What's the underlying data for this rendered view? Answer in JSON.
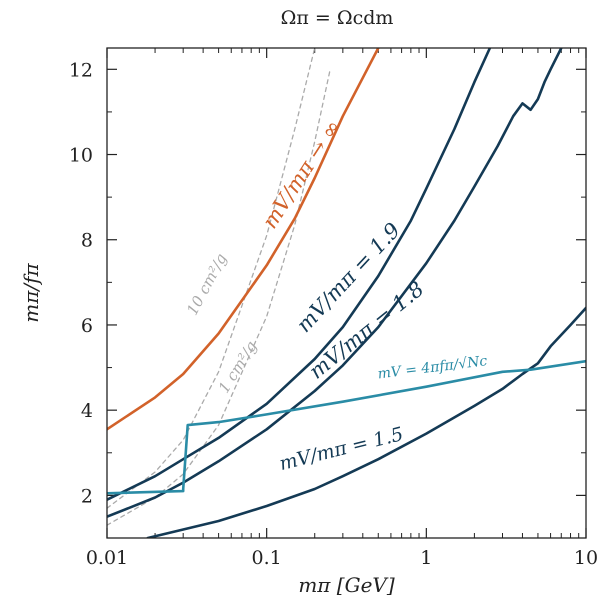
{
  "chart_data": {
    "type": "line",
    "title": "Ωπ = Ωcdm",
    "xlabel": "mπ [GeV]",
    "ylabel": "mπ/fπ",
    "xscale": "log",
    "xlim": [
      0.01,
      10
    ],
    "ylim": [
      1,
      12.5
    ],
    "xticks": [
      0.01,
      0.1,
      1,
      10
    ],
    "xtick_labels": [
      "0.01",
      "0.1",
      "1",
      "10"
    ],
    "yticks": [
      2,
      4,
      6,
      8,
      10,
      12
    ],
    "ytick_labels": [
      "2",
      "4",
      "6",
      "8",
      "10",
      "12"
    ],
    "grid": false,
    "legend": "none",
    "series": [
      {
        "name": "mV/mπ → ∞",
        "color": "#d2622a",
        "dash": "solid",
        "x": [
          0.01,
          0.02,
          0.03,
          0.05,
          0.1,
          0.15,
          0.2,
          0.3,
          0.4,
          0.5
        ],
        "y": [
          3.55,
          4.3,
          4.85,
          5.8,
          7.4,
          8.5,
          9.45,
          10.9,
          11.8,
          12.5
        ]
      },
      {
        "name": "mV/mπ = 1.9",
        "color": "#143a55",
        "dash": "solid",
        "x": [
          0.01,
          0.02,
          0.03,
          0.05,
          0.1,
          0.2,
          0.3,
          0.5,
          0.8,
          1.0,
          1.5,
          2.0,
          2.5
        ],
        "y": [
          1.9,
          2.45,
          2.85,
          3.35,
          4.15,
          5.2,
          5.95,
          7.15,
          8.45,
          9.2,
          10.6,
          11.7,
          12.5
        ]
      },
      {
        "name": "mV/mπ = 1.8",
        "color": "#143a55",
        "dash": "solid",
        "x": [
          0.01,
          0.02,
          0.03,
          0.05,
          0.1,
          0.2,
          0.3,
          0.5,
          1.0,
          1.5,
          2.0,
          2.8,
          3.5,
          4.0,
          4.5,
          5.0,
          5.5,
          6.0,
          7.0
        ],
        "y": [
          1.5,
          1.95,
          2.3,
          2.8,
          3.55,
          4.45,
          5.05,
          5.95,
          7.45,
          8.45,
          9.25,
          10.2,
          10.9,
          11.2,
          11.05,
          11.3,
          11.7,
          12.0,
          12.5
        ]
      },
      {
        "name": "mV/mπ = 1.5",
        "color": "#143a55",
        "dash": "solid",
        "x": [
          0.018,
          0.03,
          0.05,
          0.1,
          0.2,
          0.3,
          0.5,
          1.0,
          2.0,
          3.0,
          4.0,
          5.0,
          6.0,
          8.0,
          10.0
        ],
        "y": [
          1.0,
          1.2,
          1.4,
          1.75,
          2.15,
          2.45,
          2.85,
          3.45,
          4.1,
          4.5,
          4.85,
          5.1,
          5.5,
          6.0,
          6.4
        ]
      },
      {
        "name": "mV = 4πfπ/√Nc",
        "color": "#2a8ca6",
        "dash": "solid",
        "x": [
          0.01,
          0.03,
          0.03,
          0.032,
          0.05,
          0.1,
          0.3,
          1.0,
          3.0,
          4.5,
          10.0
        ],
        "y": [
          2.05,
          2.1,
          2.15,
          3.65,
          3.72,
          3.9,
          4.2,
          4.55,
          4.9,
          4.95,
          5.15
        ]
      },
      {
        "name": "10 cm²/g",
        "color": "#aaaaaa",
        "dash": "dashed",
        "x": [
          0.01,
          0.02,
          0.03,
          0.05,
          0.1,
          0.15,
          0.2
        ],
        "y": [
          1.7,
          2.55,
          3.3,
          4.9,
          8.1,
          10.6,
          12.5
        ]
      },
      {
        "name": "1 cm²/g",
        "color": "#aaaaaa",
        "dash": "dashed",
        "x": [
          0.01,
          0.02,
          0.03,
          0.05,
          0.1,
          0.15,
          0.2,
          0.25
        ],
        "y": [
          1.3,
          1.95,
          2.5,
          3.65,
          6.2,
          8.35,
          10.3,
          12.0
        ]
      }
    ],
    "annotations": [
      {
        "text": "mV/mπ → ∞",
        "x": 0.18,
        "y": 9.45,
        "angle": -57,
        "color": "#d2622a",
        "size": 21
      },
      {
        "text": "mV/mπ = 1.9",
        "x": 0.35,
        "y": 7.0,
        "angle": -47,
        "color": "#143a55",
        "size": 21
      },
      {
        "text": "mV/mπ = 1.8",
        "x": 0.45,
        "y": 5.75,
        "angle": -39,
        "color": "#143a55",
        "size": 21
      },
      {
        "text": "mV/mπ = 1.5",
        "x": 0.3,
        "y": 2.95,
        "angle": -14,
        "color": "#143a55",
        "size": 19
      },
      {
        "text": "mV = 4πfπ/√Nc",
        "x": 1.1,
        "y": 4.9,
        "angle": -7,
        "color": "#2a8ca6",
        "size": 14
      },
      {
        "text": "10 cm²/g",
        "x": 0.045,
        "y": 6.9,
        "angle": -62,
        "color": "#aaaaaa",
        "size": 15
      },
      {
        "text": "1 cm²/g",
        "x": 0.07,
        "y": 4.95,
        "angle": -58,
        "color": "#aaaaaa",
        "size": 15
      }
    ]
  }
}
